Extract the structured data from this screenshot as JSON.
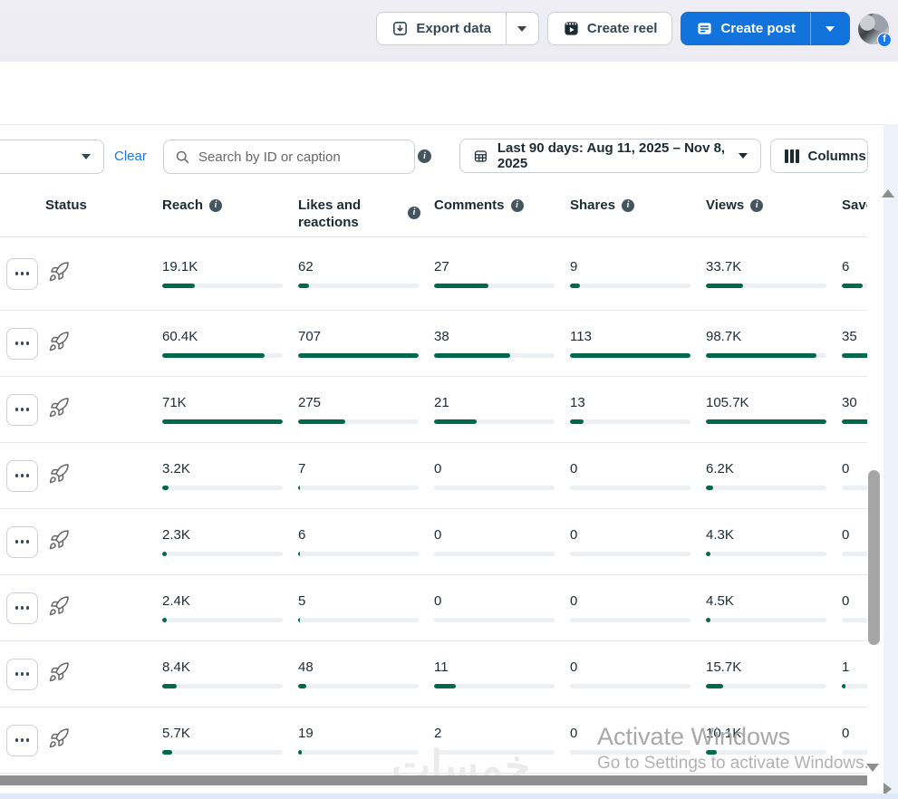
{
  "topbar": {
    "export_label": "Export data",
    "create_reel_label": "Create reel",
    "create_post_label": "Create post",
    "fb_badge": "f"
  },
  "toolbar": {
    "clear_label": "Clear",
    "search_placeholder": "Search by ID or caption",
    "date_range_label": "Last 90 days: Aug 11, 2025 – Nov 8, 2025",
    "columns_label": "Columns"
  },
  "table": {
    "columns": [
      {
        "label": "Status",
        "info": false
      },
      {
        "label": "Reach",
        "info": true
      },
      {
        "label": "Likes and reactions",
        "info": true
      },
      {
        "label": "Comments",
        "info": true
      },
      {
        "label": "Shares",
        "info": true
      },
      {
        "label": "Views",
        "info": true
      },
      {
        "label": "Saves",
        "info": true
      }
    ],
    "rows": [
      {
        "reach": {
          "v": "19.1K",
          "pct": 27
        },
        "likes": {
          "v": "62",
          "pct": 9
        },
        "comments": {
          "v": "27",
          "pct": 45
        },
        "shares": {
          "v": "9",
          "pct": 8
        },
        "views": {
          "v": "33.7K",
          "pct": 31
        },
        "saves": {
          "v": "6",
          "pct": 17
        }
      },
      {
        "reach": {
          "v": "60.4K",
          "pct": 85
        },
        "likes": {
          "v": "707",
          "pct": 100
        },
        "comments": {
          "v": "38",
          "pct": 63
        },
        "shares": {
          "v": "113",
          "pct": 100
        },
        "views": {
          "v": "98.7K",
          "pct": 92
        },
        "saves": {
          "v": "35",
          "pct": 100
        }
      },
      {
        "reach": {
          "v": "71K",
          "pct": 100
        },
        "likes": {
          "v": "275",
          "pct": 39
        },
        "comments": {
          "v": "21",
          "pct": 35
        },
        "shares": {
          "v": "13",
          "pct": 11
        },
        "views": {
          "v": "105.7K",
          "pct": 100
        },
        "saves": {
          "v": "30",
          "pct": 86
        }
      },
      {
        "reach": {
          "v": "3.2K",
          "pct": 5
        },
        "likes": {
          "v": "7",
          "pct": 1.5
        },
        "comments": {
          "v": "0",
          "pct": 0
        },
        "shares": {
          "v": "0",
          "pct": 0
        },
        "views": {
          "v": "6.2K",
          "pct": 6
        },
        "saves": {
          "v": "0",
          "pct": 0
        }
      },
      {
        "reach": {
          "v": "2.3K",
          "pct": 4
        },
        "likes": {
          "v": "6",
          "pct": 1.5
        },
        "comments": {
          "v": "0",
          "pct": 0
        },
        "shares": {
          "v": "0",
          "pct": 0
        },
        "views": {
          "v": "4.3K",
          "pct": 4
        },
        "saves": {
          "v": "0",
          "pct": 0
        }
      },
      {
        "reach": {
          "v": "2.4K",
          "pct": 4
        },
        "likes": {
          "v": "5",
          "pct": 1.5
        },
        "comments": {
          "v": "0",
          "pct": 0
        },
        "shares": {
          "v": "0",
          "pct": 0
        },
        "views": {
          "v": "4.5K",
          "pct": 4
        },
        "saves": {
          "v": "0",
          "pct": 0
        }
      },
      {
        "reach": {
          "v": "8.4K",
          "pct": 12
        },
        "likes": {
          "v": "48",
          "pct": 7
        },
        "comments": {
          "v": "11",
          "pct": 18
        },
        "shares": {
          "v": "0",
          "pct": 0
        },
        "views": {
          "v": "15.7K",
          "pct": 14
        },
        "saves": {
          "v": "1",
          "pct": 3
        }
      },
      {
        "reach": {
          "v": "5.7K",
          "pct": 8
        },
        "likes": {
          "v": "19",
          "pct": 3
        },
        "comments": {
          "v": "2",
          "pct": 3
        },
        "shares": {
          "v": "0",
          "pct": 0
        },
        "views": {
          "v": "10.1K",
          "pct": 9
        },
        "saves": {
          "v": "0",
          "pct": 0
        }
      }
    ]
  },
  "watermarks": {
    "khamsat": "خمسات",
    "activate_line1": "Activate Windows",
    "activate_line2": "Go to Settings to activate Windows."
  },
  "colors": {
    "button_blue": "#1373dd",
    "link_blue": "#1877f2",
    "bar_green": "#00694b",
    "bar_track": "#edf0f3"
  }
}
